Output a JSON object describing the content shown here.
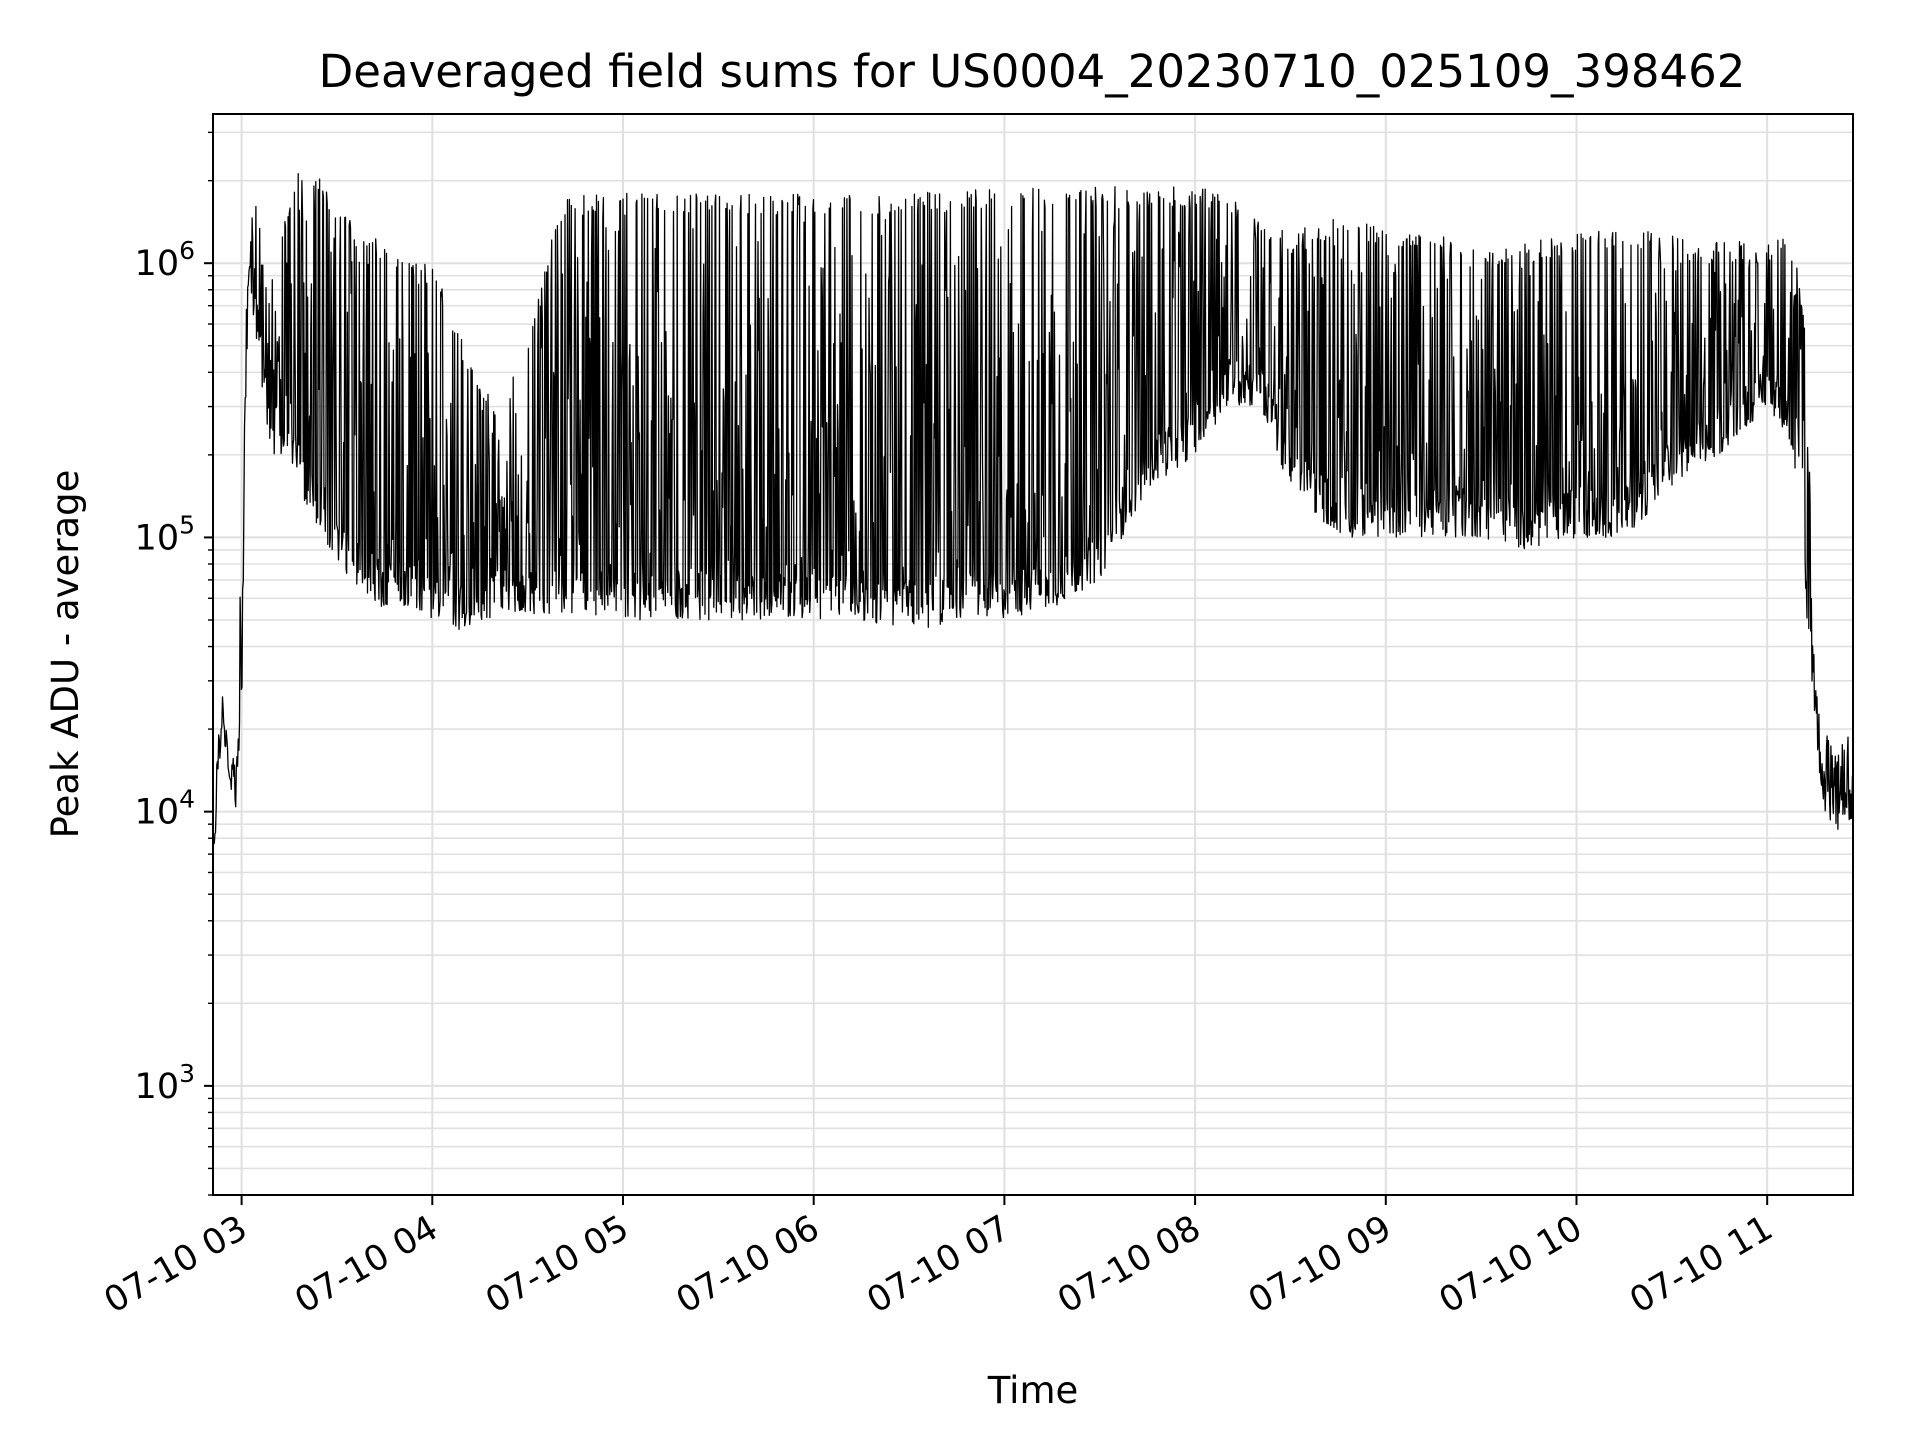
{
  "chart_data": {
    "type": "line",
    "title": "Deaveraged field sums for US0004_20230710_025109_398462",
    "xlabel": "Time",
    "ylabel": "Peak ADU - average",
    "yscale": "log",
    "ylim": [
      400,
      3500000
    ],
    "xlim": [
      "2023-07-10 02:51",
      "2023-07-10 11:27"
    ],
    "grid": true,
    "line_color": "#000000",
    "grid_color": "#e0e0e0",
    "x_ticks": [
      {
        "value": "2023-07-10 03:00",
        "label": "07-10 03"
      },
      {
        "value": "2023-07-10 04:00",
        "label": "07-10 04"
      },
      {
        "value": "2023-07-10 05:00",
        "label": "07-10 05"
      },
      {
        "value": "2023-07-10 06:00",
        "label": "07-10 06"
      },
      {
        "value": "2023-07-10 07:00",
        "label": "07-10 07"
      },
      {
        "value": "2023-07-10 08:00",
        "label": "07-10 08"
      },
      {
        "value": "2023-07-10 09:00",
        "label": "07-10 09"
      },
      {
        "value": "2023-07-10 10:00",
        "label": "07-10 10"
      },
      {
        "value": "2023-07-10 11:00",
        "label": "07-10 11"
      }
    ],
    "y_ticks": [
      {
        "value": 1000,
        "base": "10",
        "exp": "3"
      },
      {
        "value": 10000,
        "base": "10",
        "exp": "4"
      },
      {
        "value": 100000,
        "base": "10",
        "exp": "5"
      },
      {
        "value": 1000000,
        "base": "10",
        "exp": "6"
      }
    ],
    "series": [
      {
        "x": [
          "2023-07-10 02:51",
          "2023-07-10 02:52",
          "2023-07-10 02:53",
          "2023-07-10 02:54",
          "2023-07-10 02:55",
          "2023-07-10 02:56",
          "2023-07-10 02:57",
          "2023-07-10 02:58",
          "2023-07-10 02:59",
          "2023-07-10 03:00",
          "2023-07-10 03:01",
          "2023-07-10 03:02",
          "2023-07-10 03:03",
          "2023-07-10 03:04",
          "2023-07-10 03:05",
          "2023-07-10 03:06",
          "2023-07-10 03:07",
          "2023-07-10 03:08",
          "2023-07-10 03:10",
          "2023-07-10 03:12",
          "2023-07-10 03:15",
          "2023-07-10 03:18",
          "2023-07-10 03:22",
          "2023-07-10 03:26",
          "2023-07-10 03:30",
          "2023-07-10 03:35",
          "2023-07-10 03:40",
          "2023-07-10 03:45",
          "2023-07-10 03:50",
          "2023-07-10 03:55",
          "2023-07-10 04:00",
          "2023-07-10 04:10",
          "2023-07-10 04:20",
          "2023-07-10 04:30",
          "2023-07-10 04:40",
          "2023-07-10 04:50",
          "2023-07-10 05:00",
          "2023-07-10 05:15",
          "2023-07-10 05:30",
          "2023-07-10 05:45",
          "2023-07-10 06:00",
          "2023-07-10 06:15",
          "2023-07-10 06:30",
          "2023-07-10 06:45",
          "2023-07-10 07:00",
          "2023-07-10 07:15",
          "2023-07-10 07:30",
          "2023-07-10 07:45",
          "2023-07-10 08:00",
          "2023-07-10 08:10",
          "2023-07-10 08:20",
          "2023-07-10 08:30",
          "2023-07-10 08:45",
          "2023-07-10 09:00",
          "2023-07-10 09:15",
          "2023-07-10 09:30",
          "2023-07-10 09:45",
          "2023-07-10 10:00",
          "2023-07-10 10:15",
          "2023-07-10 10:30",
          "2023-07-10 10:45",
          "2023-07-10 11:00",
          "2023-07-10 11:05",
          "2023-07-10 11:10",
          "2023-07-10 11:12",
          "2023-07-10 11:14",
          "2023-07-10 11:16",
          "2023-07-10 11:18",
          "2023-07-10 11:20",
          "2023-07-10 11:22",
          "2023-07-10 11:24",
          "2023-07-10 11:26",
          "2023-07-10 11:27"
        ],
        "low": [
          5000,
          9000,
          14000,
          18000,
          17000,
          13000,
          11000,
          10000,
          12000,
          20000,
          200000,
          500000,
          700000,
          600000,
          500000,
          400000,
          300000,
          250000,
          200000,
          200000,
          180000,
          150000,
          120000,
          100000,
          80000,
          70000,
          60000,
          55000,
          55000,
          55000,
          50000,
          45000,
          50000,
          50000,
          50000,
          50000,
          50000,
          50000,
          50000,
          50000,
          50000,
          50000,
          45000,
          50000,
          50000,
          55000,
          70000,
          150000,
          200000,
          300000,
          300000,
          150000,
          100000,
          100000,
          100000,
          100000,
          90000,
          100000,
          100000,
          150000,
          200000,
          300000,
          250000,
          150000,
          60000,
          30000,
          15000,
          10000,
          9000,
          8000,
          9000,
          8000,
          8000
        ],
        "high": [
          7000,
          15000,
          20000,
          22000,
          21000,
          18000,
          16000,
          15000,
          22000,
          200000,
          600000,
          1000000,
          1300000,
          2000000,
          1600000,
          1400000,
          1200000,
          1000000,
          1000000,
          1100000,
          1800000,
          2200000,
          2100000,
          2000000,
          1700000,
          1400000,
          1300000,
          1200000,
          1100000,
          1000000,
          1000000,
          500000,
          300000,
          500000,
          1700000,
          1800000,
          1800000,
          1800000,
          1800000,
          1800000,
          1800000,
          1800000,
          1800000,
          1850000,
          1900000,
          1900000,
          1900000,
          1900000,
          1900000,
          1800000,
          1500000,
          1300000,
          1500000,
          1400000,
          1300000,
          1100000,
          1200000,
          1300000,
          1400000,
          1300000,
          1200000,
          1200000,
          1300000,
          1000000,
          600000,
          100000,
          25000,
          20000,
          18000,
          16000,
          18000,
          20000,
          15000
        ]
      }
    ]
  }
}
